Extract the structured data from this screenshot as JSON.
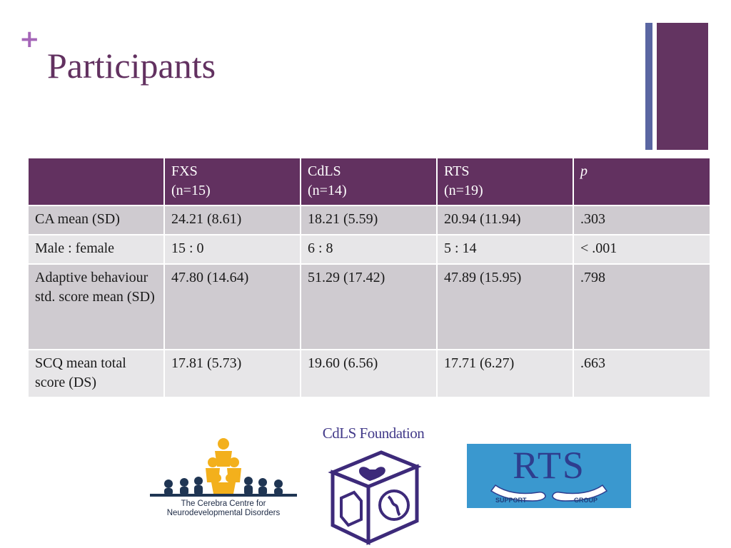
{
  "slide": {
    "plus": "+",
    "title": "Participants"
  },
  "table": {
    "headers": [
      {
        "line1": "",
        "line2": ""
      },
      {
        "line1": "FXS",
        "line2": "(n=15)"
      },
      {
        "line1": "CdLS",
        "line2": "(n=14)"
      },
      {
        "line1": "RTS",
        "line2": "(n=19)"
      },
      {
        "line1": "p",
        "line2": ""
      }
    ],
    "rows": [
      {
        "label": "CA mean (SD)",
        "fxs": "24.21 (8.61)",
        "cdls": "18.21 (5.59)",
        "rts": "20.94 (11.94)",
        "p": ".303"
      },
      {
        "label": "Male : female",
        "fxs": "15 : 0",
        "cdls": "6 : 8",
        "rts": "5 : 14",
        "p": "< .001"
      },
      {
        "label": "Adaptive behaviour std. score mean (SD)",
        "fxs": "47.80 (14.64)",
        "cdls": "51.29 (17.42)",
        "rts": "47.89 (15.95)",
        "p": ".798"
      },
      {
        "label": "SCQ mean total score (DS)",
        "fxs": "17.81 (5.73)",
        "cdls": "19.60 (6.56)",
        "rts": "17.71 (6.27)",
        "p": ".663"
      }
    ]
  },
  "logos": {
    "cerebra": {
      "line1": "The Cerebra Centre for",
      "line2": "Neurodevelopmental Disorders"
    },
    "cdls": {
      "title": "CdLS Foundation"
    },
    "rts": {
      "letters": "RTS",
      "left": "SUPPORT",
      "right": "GROUP"
    }
  },
  "colors": {
    "accent": "#623160",
    "accent_blue": "#5a66a2",
    "plus": "#a566b8",
    "row_dark": "#cfcbd0",
    "row_light": "#e7e6e8"
  }
}
